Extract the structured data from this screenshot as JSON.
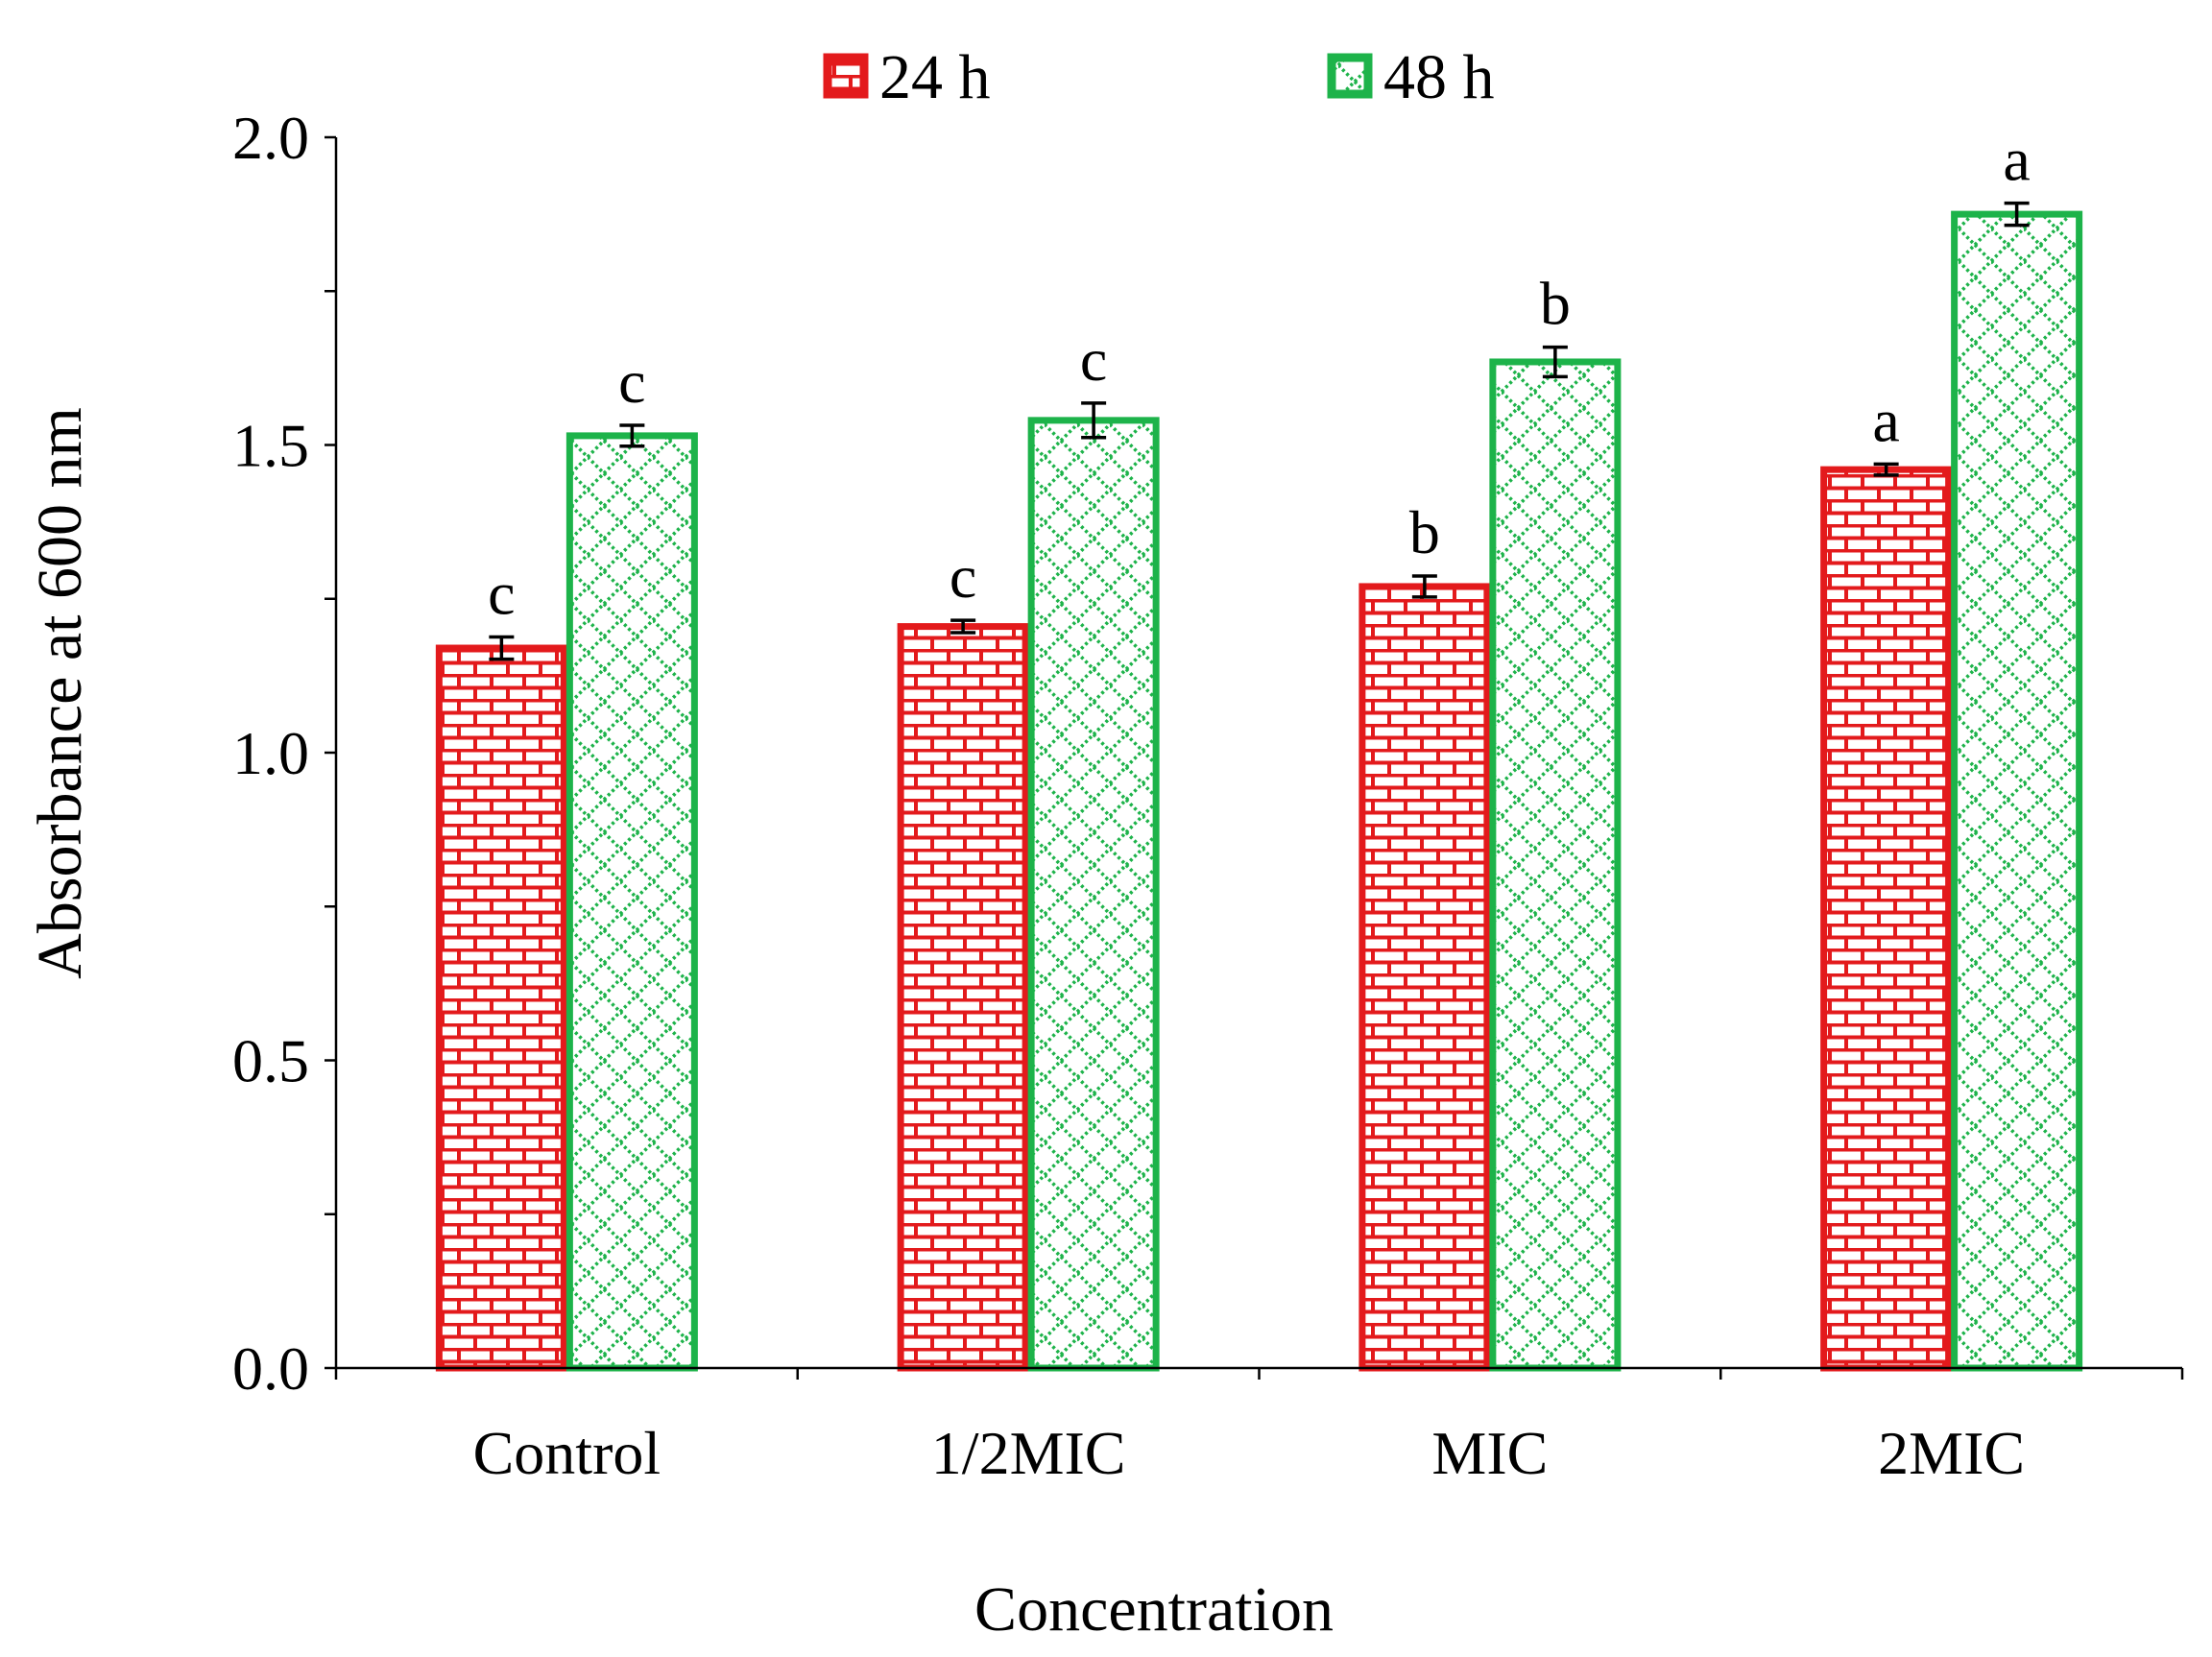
{
  "chart_data": {
    "type": "bar",
    "title": "",
    "xlabel": "Concentration",
    "ylabel": "Absorbance at 600 nm",
    "ylim": [
      0,
      2.0
    ],
    "yticks": [
      0.0,
      0.5,
      1.0,
      1.5,
      2.0
    ],
    "ytick_labels": [
      "0.0",
      "0.5",
      "1.0",
      "1.5",
      "2.0"
    ],
    "grid": false,
    "legend_position": "top-center",
    "categories": [
      "Control",
      "1/2MIC",
      "MIC",
      "2MIC"
    ],
    "series": [
      {
        "name": "24 h",
        "color": "#e31a1c",
        "pattern": "brick",
        "values": [
          1.17,
          1.205,
          1.27,
          1.46
        ],
        "errors": [
          0.018,
          0.01,
          0.017,
          0.009
        ],
        "significance": [
          "c",
          "c",
          "b",
          "a"
        ]
      },
      {
        "name": "48 h",
        "color": "#1db34a",
        "pattern": "diagonal-dots",
        "values": [
          1.515,
          1.54,
          1.635,
          1.875
        ],
        "errors": [
          0.017,
          0.028,
          0.024,
          0.018
        ],
        "significance": [
          "c",
          "c",
          "b",
          "a"
        ]
      }
    ]
  }
}
